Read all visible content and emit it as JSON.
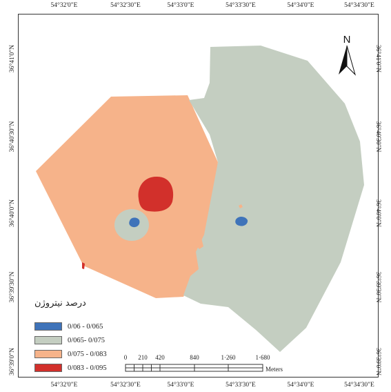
{
  "map": {
    "longitude_labels": [
      "54°32'0\"E",
      "54°32'30\"E",
      "54°33'0\"E",
      "54°33'30\"E",
      "54°34'0\"E",
      "54°34'30\"E"
    ],
    "latitude_labels": [
      "36°41'0\"N",
      "36°40'30\"N",
      "36°40'0\"N",
      "36°39'30\"N",
      "36°39'0\"N"
    ],
    "zones": [
      {
        "class": "0/075 - 0/083",
        "color": "#f6b38a"
      },
      {
        "class": "0/065- 0/075",
        "color": "#c4cec1"
      },
      {
        "class": "0/083 - 0/095",
        "color": "#d2302b"
      },
      {
        "class": "0/06 - 0/065",
        "color": "#3f73b9"
      }
    ]
  },
  "north_arrow": {
    "label": "N"
  },
  "legend": {
    "title": "درصد نیتروژن",
    "items": [
      {
        "label": "0/06 - 0/065",
        "color": "#3f73b9"
      },
      {
        "label": "0/065- 0/075",
        "color": "#c4cec1"
      },
      {
        "label": "0/075 - 0/083",
        "color": "#f6b38a"
      },
      {
        "label": "0/083 - 0/095",
        "color": "#d2302b"
      }
    ]
  },
  "scale_bar": {
    "labels": [
      "0",
      "210",
      "420",
      "840",
      "1·260",
      "1·680"
    ],
    "unit": "Meters"
  }
}
